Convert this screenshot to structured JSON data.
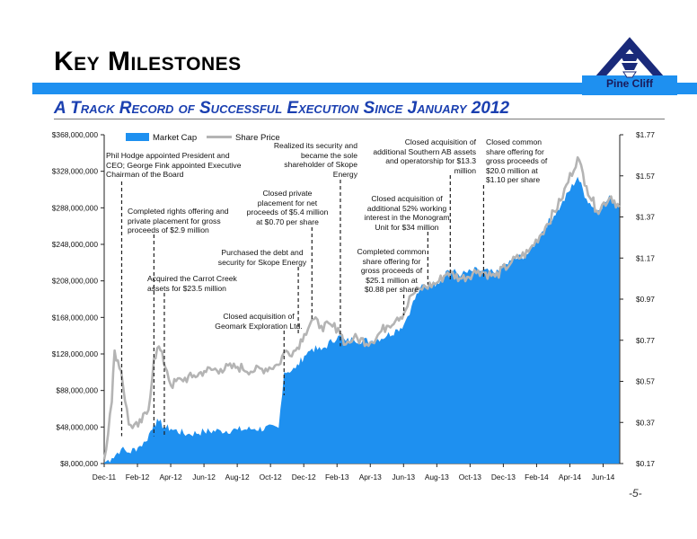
{
  "slide": {
    "title": "Key Milestones",
    "subtitle": "A Track Record of Successful Execution Since January 2012",
    "logo_text": "Pine Cliff",
    "page_number": "-5-",
    "colors": {
      "band": "#1e90f0",
      "subtitle": "#1a3fb0",
      "area": "#1e90f0",
      "price_line": "#b4b4b4"
    }
  },
  "chart_data": {
    "type": "area",
    "x_ticks": [
      "Dec-11",
      "Feb-12",
      "Apr-12",
      "Jun-12",
      "Aug-12",
      "Oct-12",
      "Dec-12",
      "Feb-13",
      "Apr-13",
      "Jun-13",
      "Aug-13",
      "Oct-13",
      "Dec-13",
      "Feb-14",
      "Apr-14",
      "Jun-14"
    ],
    "y_left_ticks": [
      "$368,000,000",
      "$328,000,000",
      "$288,000,000",
      "$248,000,000",
      "$208,000,000",
      "$168,000,000",
      "$128,000,000",
      "$88,000,000",
      "$48,000,000",
      "$8,000,000"
    ],
    "y_right_ticks": [
      "$1.77",
      "$1.57",
      "$1.37",
      "$1.17",
      "$0.97",
      "$0.77",
      "$0.57",
      "$0.37",
      "$0.17"
    ],
    "ylim_left": [
      8000000,
      368000000
    ],
    "ylim_right": [
      0.17,
      1.77
    ],
    "legend": {
      "placement": "top-left",
      "entries": [
        "Market Cap",
        "Share Price"
      ]
    },
    "series": [
      {
        "name": "Market Cap",
        "axis": "left",
        "points": [
          [
            "2011-12-01",
            9000000
          ],
          [
            "2011-12-15",
            14000000
          ],
          [
            "2012-01-01",
            24000000
          ],
          [
            "2012-01-15",
            20000000
          ],
          [
            "2012-02-01",
            26000000
          ],
          [
            "2012-02-15",
            32000000
          ],
          [
            "2012-03-01",
            52000000
          ],
          [
            "2012-03-10",
            54000000
          ],
          [
            "2012-03-20",
            48000000
          ],
          [
            "2012-04-01",
            46000000
          ],
          [
            "2012-05-01",
            40000000
          ],
          [
            "2012-06-01",
            43000000
          ],
          [
            "2012-07-01",
            44000000
          ],
          [
            "2012-08-01",
            45000000
          ],
          [
            "2012-09-01",
            46000000
          ],
          [
            "2012-10-15",
            47000000
          ],
          [
            "2012-10-25",
            108000000
          ],
          [
            "2012-11-15",
            112000000
          ],
          [
            "2012-12-01",
            126000000
          ],
          [
            "2012-12-15",
            134000000
          ],
          [
            "2013-01-01",
            132000000
          ],
          [
            "2013-02-01",
            148000000
          ],
          [
            "2013-02-15",
            142000000
          ],
          [
            "2013-03-01",
            144000000
          ],
          [
            "2013-04-01",
            142000000
          ],
          [
            "2013-05-01",
            148000000
          ],
          [
            "2013-05-20",
            155000000
          ],
          [
            "2013-06-01",
            160000000
          ],
          [
            "2013-06-15",
            180000000
          ],
          [
            "2013-07-01",
            200000000
          ],
          [
            "2013-08-01",
            206000000
          ],
          [
            "2013-08-20",
            220000000
          ],
          [
            "2013-09-15",
            215000000
          ],
          [
            "2013-10-15",
            220000000
          ],
          [
            "2013-11-15",
            216000000
          ],
          [
            "2013-12-15",
            230000000
          ],
          [
            "2014-01-15",
            238000000
          ],
          [
            "2014-02-15",
            268000000
          ],
          [
            "2014-03-15",
            290000000
          ],
          [
            "2014-04-15",
            322000000
          ],
          [
            "2014-05-01",
            298000000
          ],
          [
            "2014-05-20",
            285000000
          ],
          [
            "2014-06-15",
            300000000
          ],
          [
            "2014-06-30",
            288000000
          ]
        ]
      },
      {
        "name": "Share Price",
        "axis": "right",
        "points": [
          [
            "2011-12-01",
            0.19
          ],
          [
            "2011-12-15",
            0.47
          ],
          [
            "2011-12-20",
            0.72
          ],
          [
            "2012-01-01",
            0.62
          ],
          [
            "2012-01-15",
            0.36
          ],
          [
            "2012-02-01",
            0.35
          ],
          [
            "2012-02-20",
            0.43
          ],
          [
            "2012-03-01",
            0.68
          ],
          [
            "2012-03-10",
            0.74
          ],
          [
            "2012-03-25",
            0.62
          ],
          [
            "2012-04-01",
            0.55
          ],
          [
            "2012-04-20",
            0.58
          ],
          [
            "2012-05-10",
            0.59
          ],
          [
            "2012-06-01",
            0.62
          ],
          [
            "2012-07-01",
            0.63
          ],
          [
            "2012-08-01",
            0.64
          ],
          [
            "2012-09-01",
            0.62
          ],
          [
            "2012-10-15",
            0.65
          ],
          [
            "2012-10-25",
            0.71
          ],
          [
            "2012-11-15",
            0.72
          ],
          [
            "2012-12-01",
            0.8
          ],
          [
            "2012-12-15",
            0.87
          ],
          [
            "2013-01-01",
            0.84
          ],
          [
            "2013-02-01",
            0.83
          ],
          [
            "2013-02-15",
            0.75
          ],
          [
            "2013-03-01",
            0.78
          ],
          [
            "2013-04-01",
            0.76
          ],
          [
            "2013-05-01",
            0.84
          ],
          [
            "2013-05-20",
            0.88
          ],
          [
            "2013-06-01",
            0.9
          ],
          [
            "2013-06-15",
            0.99
          ],
          [
            "2013-07-01",
            1.02
          ],
          [
            "2013-08-01",
            1.05
          ],
          [
            "2013-08-20",
            1.1
          ],
          [
            "2013-09-15",
            1.07
          ],
          [
            "2013-10-15",
            1.11
          ],
          [
            "2013-11-15",
            1.08
          ],
          [
            "2013-12-15",
            1.15
          ],
          [
            "2014-01-15",
            1.2
          ],
          [
            "2014-02-15",
            1.32
          ],
          [
            "2014-03-15",
            1.45
          ],
          [
            "2014-04-15",
            1.66
          ],
          [
            "2014-05-01",
            1.52
          ],
          [
            "2014-05-20",
            1.4
          ],
          [
            "2014-06-15",
            1.47
          ],
          [
            "2014-06-30",
            1.42
          ]
        ]
      }
    ],
    "annotations": [
      {
        "lines": [
          "Phil Hodge appointed President and",
          "CEO; George Fink appointed Executive",
          "Chairman of the Board"
        ],
        "date": "2012-01-02",
        "align": "left"
      },
      {
        "lines": [
          "Completed rights offering and",
          "private placement for gross",
          "proceeds of  $2.9 million"
        ],
        "date": "2012-03-01",
        "align": "left"
      },
      {
        "lines": [
          "Acquired the Carrot Creek",
          "assets for $23.5 million"
        ],
        "date": "2012-03-20",
        "align": "left"
      },
      {
        "lines": [
          "Closed acquisition of",
          "Geomark Exploration Ltd."
        ],
        "date": "2012-10-25",
        "align": "center"
      },
      {
        "lines": [
          "Purchased the debt and",
          "security for Skope Energy"
        ],
        "date": "2012-11-20",
        "align": "center"
      },
      {
        "lines": [
          "Closed private",
          "placement for net",
          "proceeds of  $5.4 million",
          "at $0.70 per share"
        ],
        "date": "2012-12-15",
        "align": "center"
      },
      {
        "lines": [
          "Realized its security and",
          "became the sole",
          "shareholder of Skope",
          "Energy"
        ],
        "date": "2013-02-05",
        "align": "right"
      },
      {
        "lines": [
          "Completed common",
          "share offering for",
          "gross proceeds of",
          "$25.1 million at",
          "$0.88 per share"
        ],
        "date": "2013-06-01",
        "align": "center"
      },
      {
        "lines": [
          "Closed acquisition of",
          "additional 52% working",
          "interest in the Monogram",
          "Unit for $34 million"
        ],
        "date": "2013-07-15",
        "align": "center"
      },
      {
        "lines": [
          "Closed acquisition of",
          "additional Southern AB assets",
          "and operatorship for $13.3",
          "million"
        ],
        "date": "2013-08-25",
        "align": "right"
      },
      {
        "lines": [
          "Closed common",
          "share offering for",
          "gross proceeds of",
          "$20.0 million at",
          "$1.10 per share"
        ],
        "date": "2013-10-25",
        "align": "left"
      }
    ]
  }
}
